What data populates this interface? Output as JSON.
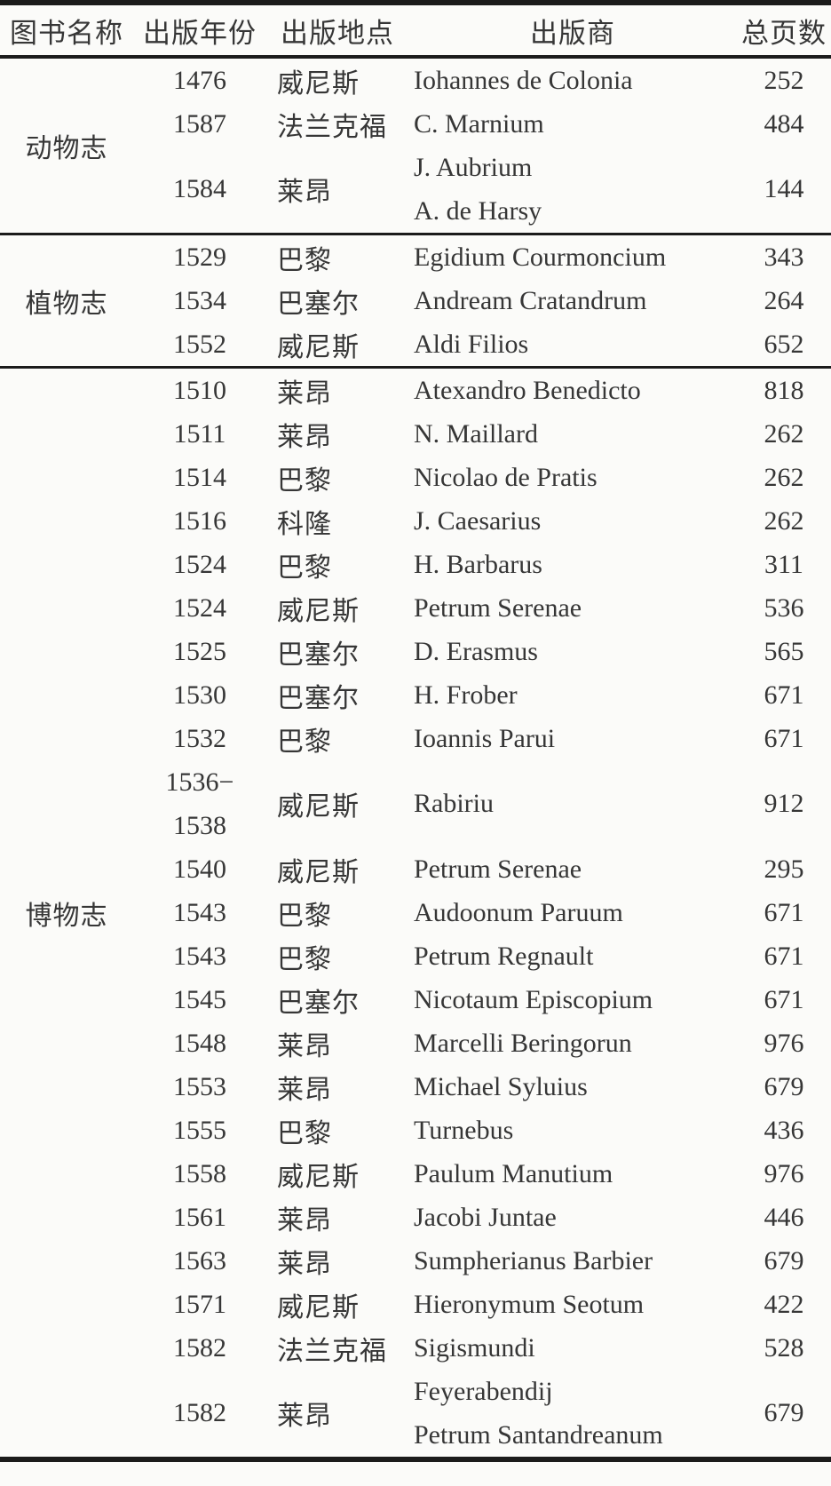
{
  "colors": {
    "text": "#363636",
    "border": "#1b1b1b",
    "background": "#fbfbf9"
  },
  "table": {
    "headers": [
      "图书名称",
      "出版年份",
      "出版地点",
      "出版商",
      "总页数"
    ],
    "groups": [
      {
        "name": "动物志",
        "rows": [
          {
            "year": "1476",
            "place": "威尼斯",
            "publisher": "Iohannes de Colonia",
            "pages": "252"
          },
          {
            "year": "1587",
            "place": "法兰克福",
            "publisher": "C. Marnium",
            "pages": "484"
          },
          {
            "year": "1584",
            "place": "莱昂",
            "publisher": [
              "J. Aubrium",
              "A. de Harsy"
            ],
            "pages": "144"
          }
        ]
      },
      {
        "name": "植物志",
        "rows": [
          {
            "year": "1529",
            "place": "巴黎",
            "publisher": "Egidium Courmoncium",
            "pages": "343"
          },
          {
            "year": "1534",
            "place": "巴塞尔",
            "publisher": "Andream Cratandrum",
            "pages": "264"
          },
          {
            "year": "1552",
            "place": "威尼斯",
            "publisher": "Aldi Filios",
            "pages": "652"
          }
        ]
      },
      {
        "name": "博物志",
        "rows": [
          {
            "year": "1510",
            "place": "莱昂",
            "publisher": "Atexandro Benedicto",
            "pages": "818"
          },
          {
            "year": "1511",
            "place": "莱昂",
            "publisher": "N. Maillard",
            "pages": "262"
          },
          {
            "year": "1514",
            "place": "巴黎",
            "publisher": "Nicolao de Pratis",
            "pages": "262"
          },
          {
            "year": "1516",
            "place": "科隆",
            "publisher": "J. Caesarius",
            "pages": "262"
          },
          {
            "year": "1524",
            "place": "巴黎",
            "publisher": "H. Barbarus",
            "pages": "311"
          },
          {
            "year": "1524",
            "place": "威尼斯",
            "publisher": "Petrum Serenae",
            "pages": "536"
          },
          {
            "year": "1525",
            "place": "巴塞尔",
            "publisher": "D. Erasmus",
            "pages": "565"
          },
          {
            "year": "1530",
            "place": "巴塞尔",
            "publisher": "H. Frober",
            "pages": "671"
          },
          {
            "year": "1532",
            "place": "巴黎",
            "publisher": "Ioannis Parui",
            "pages": "671"
          },
          {
            "year": [
              "1536−",
              "1538"
            ],
            "place": "威尼斯",
            "publisher": "Rabiriu",
            "pages": "912"
          },
          {
            "year": "1540",
            "place": "威尼斯",
            "publisher": "Petrum Serenae",
            "pages": "295"
          },
          {
            "year": "1543",
            "place": "巴黎",
            "publisher": "Audoonum Paruum",
            "pages": "671"
          },
          {
            "year": "1543",
            "place": "巴黎",
            "publisher": "Petrum Regnault",
            "pages": "671"
          },
          {
            "year": "1545",
            "place": "巴塞尔",
            "publisher": "Nicotaum Episcopium",
            "pages": "671"
          },
          {
            "year": "1548",
            "place": "莱昂",
            "publisher": "Marcelli Beringorun",
            "pages": "976"
          },
          {
            "year": "1553",
            "place": "莱昂",
            "publisher": "Michael Syluius",
            "pages": "679"
          },
          {
            "year": "1555",
            "place": "巴黎",
            "publisher": "Turnebus",
            "pages": "436"
          },
          {
            "year": "1558",
            "place": "威尼斯",
            "publisher": "Paulum Manutium",
            "pages": "976"
          },
          {
            "year": "1561",
            "place": "莱昂",
            "publisher": "Jacobi Juntae",
            "pages": "446"
          },
          {
            "year": "1563",
            "place": "莱昂",
            "publisher": "Sumpherianus Barbier",
            "pages": "679"
          },
          {
            "year": "1571",
            "place": "威尼斯",
            "publisher": "Hieronymum Seotum",
            "pages": "422"
          },
          {
            "year": "1582",
            "place": "法兰克福",
            "publisher": "Sigismundi",
            "pages": "528"
          },
          {
            "year": "1582",
            "place": "莱昂",
            "publisher": [
              "Feyerabendij",
              "Petrum Santandreanum"
            ],
            "pages": "679"
          }
        ]
      }
    ]
  }
}
